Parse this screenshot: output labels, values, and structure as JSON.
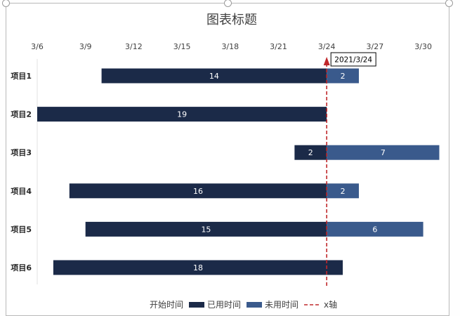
{
  "chart_data": {
    "type": "bar",
    "orientation": "horizontal-stacked",
    "title": "图表标题",
    "x_tick_labels": [
      "3/6",
      "3/9",
      "3/12",
      "3/15",
      "3/18",
      "3/21",
      "3/24",
      "3/27",
      "3/30"
    ],
    "x_range_days": [
      "2021-03-06",
      "2021-03-31"
    ],
    "categories": [
      "项目1",
      "项目2",
      "项目3",
      "项目4",
      "项目5",
      "项目6"
    ],
    "series": [
      {
        "name": "开始时间",
        "color": "none",
        "values": [
          "2021-03-10",
          "2021-03-05",
          "2021-03-22",
          "2021-03-08",
          "2021-03-09",
          "2021-03-07"
        ]
      },
      {
        "name": "已用时间",
        "color": "#1b2a48",
        "values": [
          14,
          19,
          2,
          16,
          15,
          18
        ]
      },
      {
        "name": "未用时间",
        "color": "#3a5a8c",
        "values": [
          2,
          0,
          7,
          2,
          6,
          0
        ]
      }
    ],
    "reference_line": {
      "name": "x轴",
      "date": "2021-03-24",
      "label": "2021/3/24",
      "color": "#c0282b"
    },
    "legend_position": "bottom",
    "grid": false
  }
}
